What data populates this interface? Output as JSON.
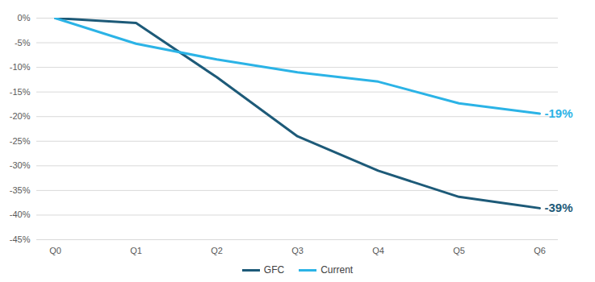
{
  "chart_data": {
    "type": "line",
    "categories": [
      "Q0",
      "Q1",
      "Q2",
      "Q3",
      "Q4",
      "Q5",
      "Q6"
    ],
    "series": [
      {
        "name": "GFC",
        "color": "#1d5a78",
        "values": [
          0,
          -1,
          -12,
          -24,
          -31,
          -36.3,
          -38.6
        ],
        "end_label": "-39%"
      },
      {
        "name": "Current",
        "color": "#2bb3e6",
        "values": [
          0,
          -5.2,
          -8.4,
          -11,
          -12.9,
          -17.3,
          -19.4
        ],
        "end_label": "-19%"
      }
    ],
    "ylim": [
      -45,
      0
    ],
    "yticks": [
      {
        "value": 0,
        "label": "0%"
      },
      {
        "value": -5,
        "label": "-5%"
      },
      {
        "value": -10,
        "label": "-10%"
      },
      {
        "value": -15,
        "label": "-15%"
      },
      {
        "value": -20,
        "label": "-20%"
      },
      {
        "value": -25,
        "label": "-25%"
      },
      {
        "value": -30,
        "label": "-30%"
      },
      {
        "value": -35,
        "label": "-35%"
      },
      {
        "value": -40,
        "label": "-40%"
      },
      {
        "value": -45,
        "label": "-45%"
      }
    ],
    "grid": true,
    "legend": "bottom"
  }
}
